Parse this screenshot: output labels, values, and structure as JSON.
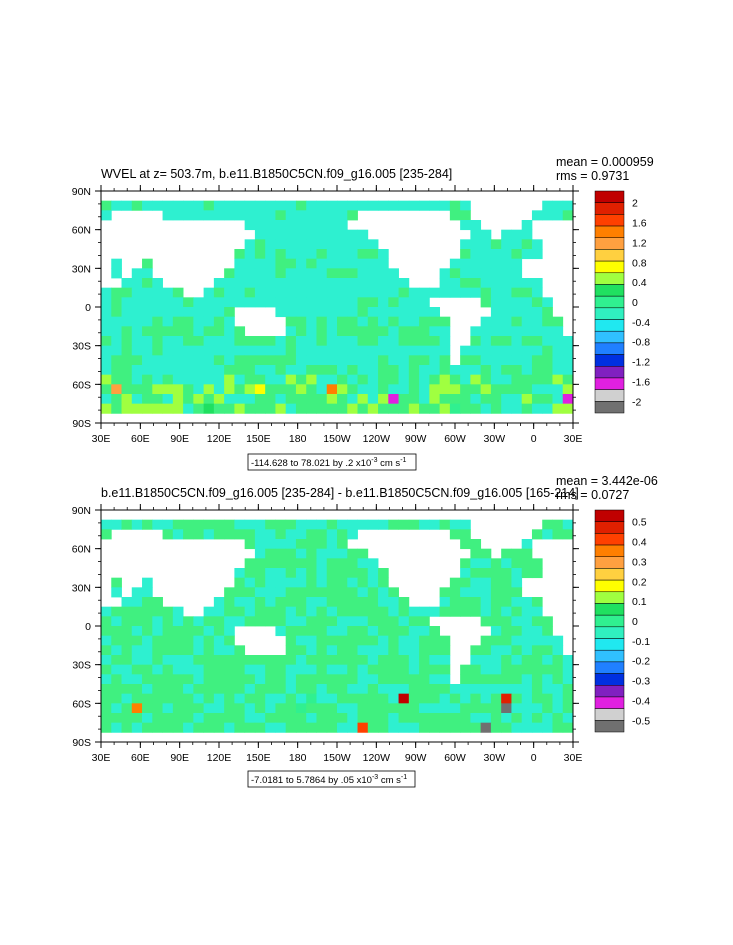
{
  "chart_data": [
    {
      "type": "heatmap",
      "title": "WVEL at z= 503.7m, b.e11.B1850C5CN.f09_g16.005 [235-284]",
      "stats": [
        "mean = 0.000959",
        "rms = 0.9731"
      ],
      "range_label_prefix": "-114.628 to 78.021 by .2 x10",
      "range_label_exp": "-3",
      "range_label_unit": " cm s",
      "range_label_unit_exp": "-1",
      "x_ticks": [
        "30E",
        "60E",
        "90E",
        "120E",
        "150E",
        "180",
        "150W",
        "120W",
        "90W",
        "60W",
        "30W",
        "0",
        "30E"
      ],
      "y_ticks": [
        "90N",
        "60N",
        "30N",
        "0",
        "30S",
        "60S",
        "90S"
      ],
      "colorbar_levels": [
        "2",
        "1.6",
        "1.2",
        "0.8",
        "0.4",
        "0",
        "-0.4",
        "-0.8",
        "-1.2",
        "-1.6",
        "-2"
      ]
    },
    {
      "type": "heatmap",
      "title": "b.e11.B1850C5CN.f09_g16.005 [235-284] - b.e11.B1850C5CN.f09_g16.005 [165-214]",
      "stats": [
        "mean = 3.442e-06",
        "rms = 0.0727"
      ],
      "range_label_prefix": "-7.0181 to 5.7864 by .05 x10",
      "range_label_exp": "-3",
      "range_label_unit": " cm s",
      "range_label_unit_exp": "-1",
      "x_ticks": [
        "30E",
        "60E",
        "90E",
        "120E",
        "150E",
        "180",
        "150W",
        "120W",
        "90W",
        "60W",
        "30W",
        "0",
        "30E"
      ],
      "y_ticks": [
        "90N",
        "60N",
        "30N",
        "0",
        "30S",
        "60S",
        "90S"
      ],
      "colorbar_levels": [
        "0.5",
        "0.4",
        "0.3",
        "0.2",
        "0.1",
        "0",
        "-0.1",
        "-0.2",
        "-0.3",
        "-0.4",
        "-0.5"
      ]
    }
  ],
  "colors": {
    "palette": [
      "#c00000",
      "#e02000",
      "#ff4000",
      "#ff7f00",
      "#ffa040",
      "#ffd040",
      "#ffff00",
      "#a0ff40",
      "#20e060",
      "#30f090",
      "#30f0c0",
      "#20e8f0",
      "#30c0ff",
      "#2080ff",
      "#0030e0",
      "#8020c0",
      "#e020e0",
      "#d0d0d0",
      "#707070"
    ],
    "ocean": "#2ef0d0",
    "ocean_upper": "#40f080",
    "diff_ocean": "#40f080"
  }
}
